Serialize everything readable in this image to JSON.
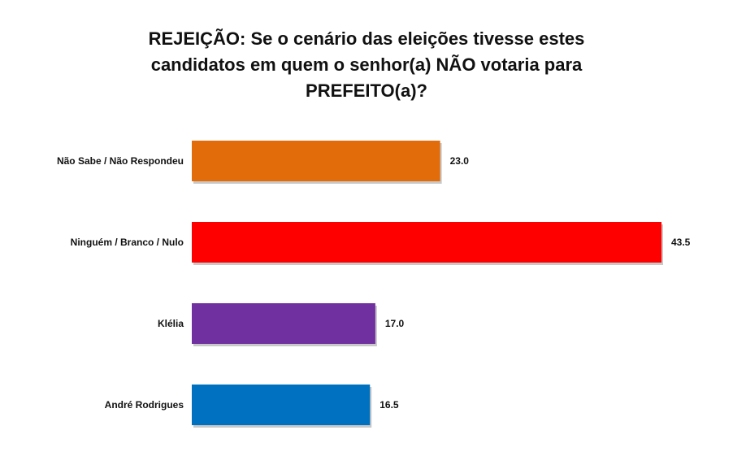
{
  "chart_data": {
    "type": "bar",
    "orientation": "horizontal",
    "title_lines": [
      "REJEIÇÃO: Se o cenário das eleições tivesse estes",
      "candidatos em quem o senhor(a) NÃO votaria para",
      "PREFEITO(a)?"
    ],
    "categories": [
      "Não Sabe / Não Respondeu",
      "Ninguém / Branco / Nulo",
      "Klélia",
      "André Rodrigues"
    ],
    "values": [
      23.0,
      43.5,
      17.0,
      16.5
    ],
    "value_labels": [
      "23.0",
      "43.5",
      "17.0",
      "16.5"
    ],
    "colors": [
      "#E36C0A",
      "#FF0000",
      "#7030A0",
      "#0070C0"
    ],
    "xlim": [
      0,
      45
    ],
    "grid": false,
    "legend": "none"
  }
}
